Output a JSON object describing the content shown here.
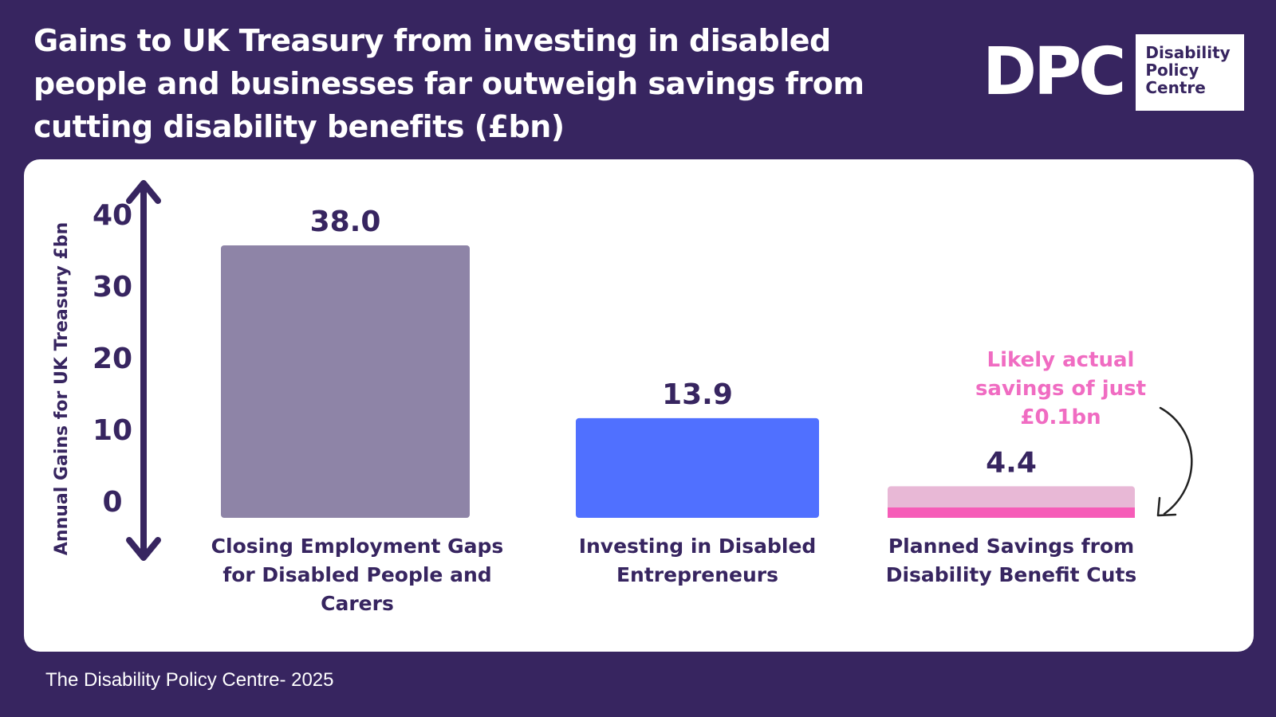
{
  "title": "Gains to UK Treasury from investing in disabled people and businesses far outweigh savings from cutting disability benefits (£bn)",
  "logo": {
    "mark": "DPC",
    "lines": [
      "Disability",
      "Policy",
      "Centre"
    ]
  },
  "footer": "The Disability Policy Centre- 2025",
  "colors": {
    "background": "#372560",
    "bar1": "#8E84A7",
    "bar2": "#5070FF",
    "bar3": "#E8B8D6",
    "bar3_actual": "#F65CB8",
    "annotation": "#F06CC2",
    "axis": "#372560"
  },
  "chart_data": {
    "type": "bar",
    "title": "Gains to UK Treasury from investing in disabled people and businesses far outweigh savings from cutting disability benefits (£bn)",
    "ylabel": "Annual Gains for UK Treasury £bn",
    "xlabel": "",
    "ylim": [
      0,
      40
    ],
    "yticks": [
      0,
      10,
      20,
      30,
      40
    ],
    "categories": [
      [
        "Closing Employment Gaps",
        "for Disabled People and",
        "Carers"
      ],
      [
        "Investing in Disabled",
        "Entrepreneurs"
      ],
      [
        "Planned Savings from",
        "Disability Benefit Cuts"
      ]
    ],
    "values": [
      38.0,
      13.9,
      4.4
    ],
    "value_labels": [
      "38.0",
      "13.9",
      "4.4"
    ],
    "actual_savings": 0.1,
    "annotation": [
      "Likely actual",
      "savings of just",
      "£0.1bn"
    ]
  }
}
